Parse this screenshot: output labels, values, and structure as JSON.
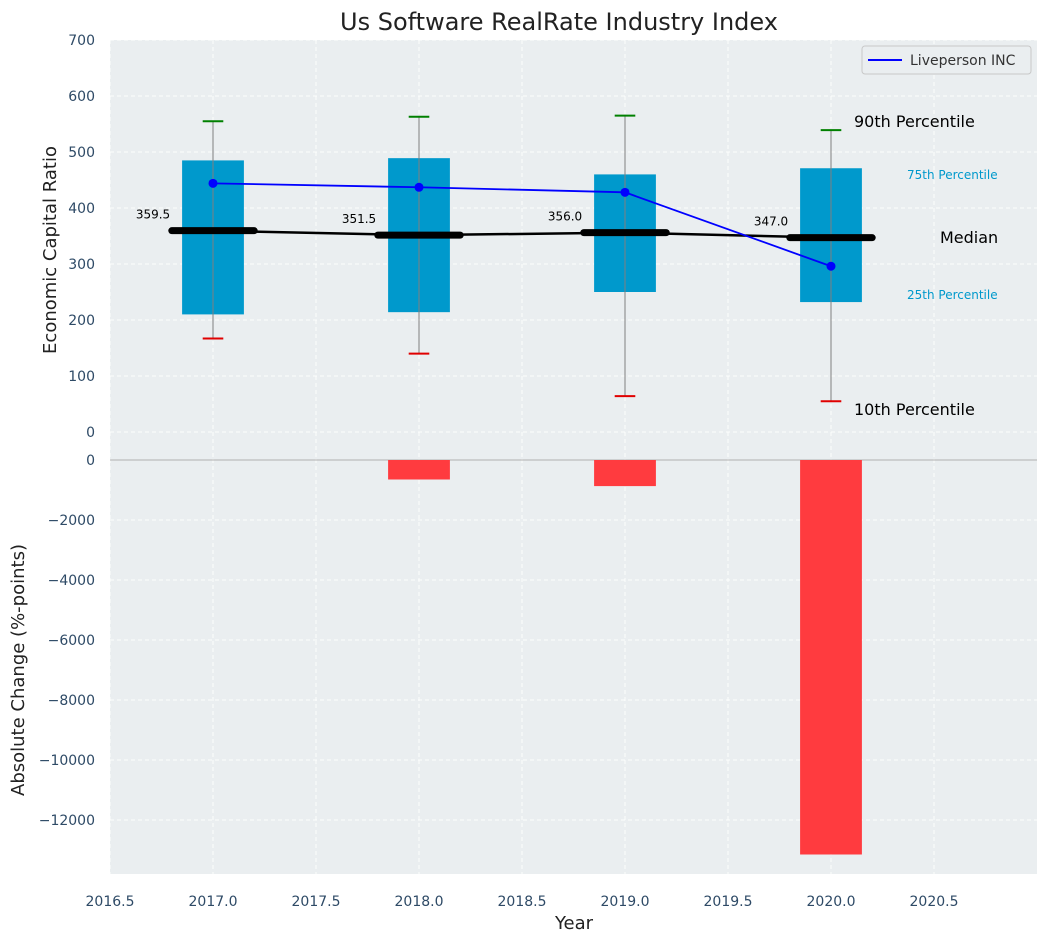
{
  "chart_data": {
    "type": "box+bar",
    "title": "Us Software RealRate Industry Index",
    "xlabel": "Year",
    "xlim": [
      2016.5,
      2021.0
    ],
    "x_ticks": [
      "2016.5",
      "2017.0",
      "2017.5",
      "2018.0",
      "2018.5",
      "2019.0",
      "2019.5",
      "2020.0",
      "2020.5"
    ],
    "top": {
      "ylabel": "Economic Capital Ratio",
      "ylim": [
        0,
        700
      ],
      "y_ticks": [
        "0",
        "100",
        "200",
        "300",
        "400",
        "500",
        "600",
        "700"
      ],
      "grid": true,
      "years": [
        2017,
        2018,
        2019,
        2020
      ],
      "p10": [
        167,
        140,
        64,
        55
      ],
      "p25": [
        210,
        214,
        250,
        232
      ],
      "median": [
        359.5,
        351.5,
        356.0,
        347.0
      ],
      "median_labels": [
        "359.5",
        "351.5",
        "356.0",
        "347.0"
      ],
      "p75": [
        485,
        489,
        460,
        471
      ],
      "p90": [
        555,
        563,
        565,
        539
      ],
      "company": {
        "name": "Liveperson INC",
        "values": [
          444,
          437,
          428,
          296
        ]
      },
      "annotations": {
        "p90": "90th Percentile",
        "p75": "75th Percentile",
        "median": "Median",
        "p25": "25th Percentile",
        "p10": "10th Percentile"
      },
      "legend": {
        "position": "top-right",
        "entries": [
          "Liveperson INC"
        ]
      }
    },
    "bottom": {
      "type": "bar",
      "ylabel": "Absolute Change (%-points)",
      "ylim": [
        -13800,
        0
      ],
      "y_ticks": [
        "0",
        "−2000",
        "−4000",
        "−6000",
        "−8000",
        "−10000",
        "−12000"
      ],
      "years": [
        2017,
        2018,
        2019,
        2020
      ],
      "values": [
        0,
        -650,
        -870,
        -13150
      ]
    },
    "colors": {
      "background": "#eaeef0",
      "box": "#0099cc",
      "company_line": "#0000ff",
      "median_line": "#000000",
      "whisker_top": "#008000",
      "whisker_bottom": "#e00000",
      "bar_negative": "#ff3b3f",
      "percentile_small_text": "#0099cc"
    }
  }
}
